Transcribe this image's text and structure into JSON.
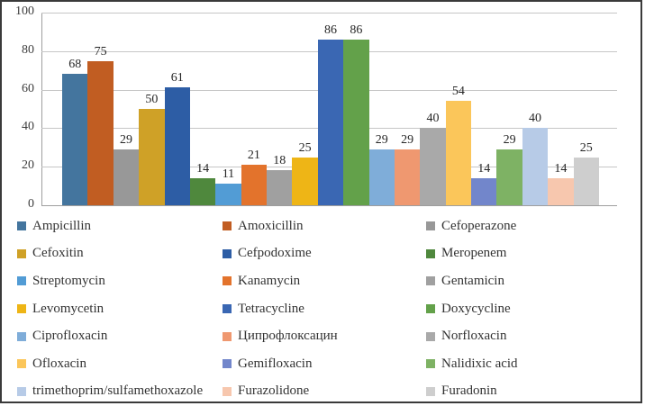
{
  "frame": {
    "border_color": "#3a3a3a",
    "background_color": "#ffffff"
  },
  "chart_data": {
    "type": "bar",
    "title": "",
    "xlabel": "",
    "ylabel": "",
    "ylim": [
      0,
      100
    ],
    "yticks": [
      0,
      20,
      40,
      60,
      80,
      100
    ],
    "grid": "horizontal",
    "gridline_color": "#c6c6c6",
    "axis_color": "#9e9e9e",
    "data_labels_shown": true,
    "legend_position": "bottom",
    "legend_columns": 3,
    "series": [
      {
        "name": "Ampicillin",
        "value": 68,
        "color": "#44759e"
      },
      {
        "name": "Amoxicillin",
        "value": 75,
        "color": "#c15d22"
      },
      {
        "name": "Cefoperazone",
        "value": 29,
        "color": "#989898"
      },
      {
        "name": "Cefoxitin",
        "value": 50,
        "color": "#cfa127"
      },
      {
        "name": "Cefpodoxime",
        "value": 61,
        "color": "#2d5da5"
      },
      {
        "name": "Meropenem",
        "value": 14,
        "color": "#4f883d"
      },
      {
        "name": "Streptomycin",
        "value": 11,
        "color": "#529cd5"
      },
      {
        "name": "Kanamycin",
        "value": 21,
        "color": "#e3732c"
      },
      {
        "name": "Gentamicin",
        "value": 18,
        "color": "#a0a0a0"
      },
      {
        "name": "Levomycetin",
        "value": 25,
        "color": "#eeb516"
      },
      {
        "name": "Tetracycline",
        "value": 86,
        "color": "#3a67b3"
      },
      {
        "name": "Doxycycline",
        "value": 86,
        "color": "#63a14a"
      },
      {
        "name": "Ciprofloxacin",
        "value": 29,
        "color": "#7fadd9"
      },
      {
        "name": "Ципрофлоксацин",
        "value": 29,
        "color": "#ef9870"
      },
      {
        "name": "Norfloxacin",
        "value": 40,
        "color": "#a9a9a9"
      },
      {
        "name": "Ofloxacin",
        "value": 54,
        "color": "#fbc65a"
      },
      {
        "name": "Gemifloxacin",
        "value": 14,
        "color": "#7286cb"
      },
      {
        "name": "Nalidixic acid",
        "value": 29,
        "color": "#7eb264"
      },
      {
        "name": "trimethoprim/sulfamethoxazole",
        "value": 40,
        "color": "#b7cbe7"
      },
      {
        "name": "Furazolidone",
        "value": 14,
        "color": "#f7c7ae"
      },
      {
        "name": "Furadonin",
        "value": 25,
        "color": "#cecece"
      }
    ]
  }
}
